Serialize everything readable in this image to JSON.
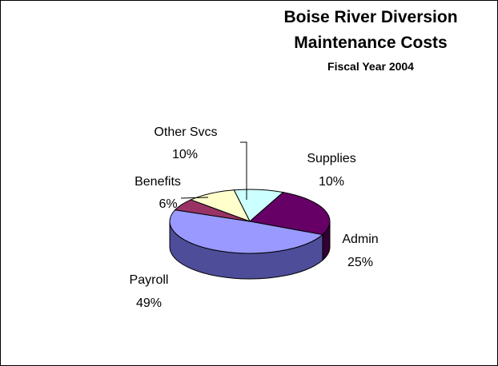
{
  "chart_data": {
    "type": "pie",
    "style": "3d",
    "title_lines": [
      "Boise River Diversion",
      "Maintenance Costs"
    ],
    "subtitle": "Fiscal Year 2004",
    "slices": [
      {
        "label": "Supplies",
        "pct_label": "10%",
        "value": 10,
        "color": "#ccffff",
        "side_color": "#99cccc"
      },
      {
        "label": "Admin",
        "pct_label": "25%",
        "value": 25,
        "color": "#660066",
        "side_color": "#330033"
      },
      {
        "label": "Payroll",
        "pct_label": "49%",
        "value": 49,
        "color": "#9999ff",
        "side_color": "#4d4d99"
      },
      {
        "label": "Benefits",
        "pct_label": "6%",
        "value": 6,
        "color": "#993366",
        "side_color": "#4d1a33"
      },
      {
        "label": "Other Svcs",
        "pct_label": "10%",
        "value": 10,
        "color": "#ffffcc",
        "side_color": "#99997a"
      }
    ],
    "legend": "none"
  }
}
